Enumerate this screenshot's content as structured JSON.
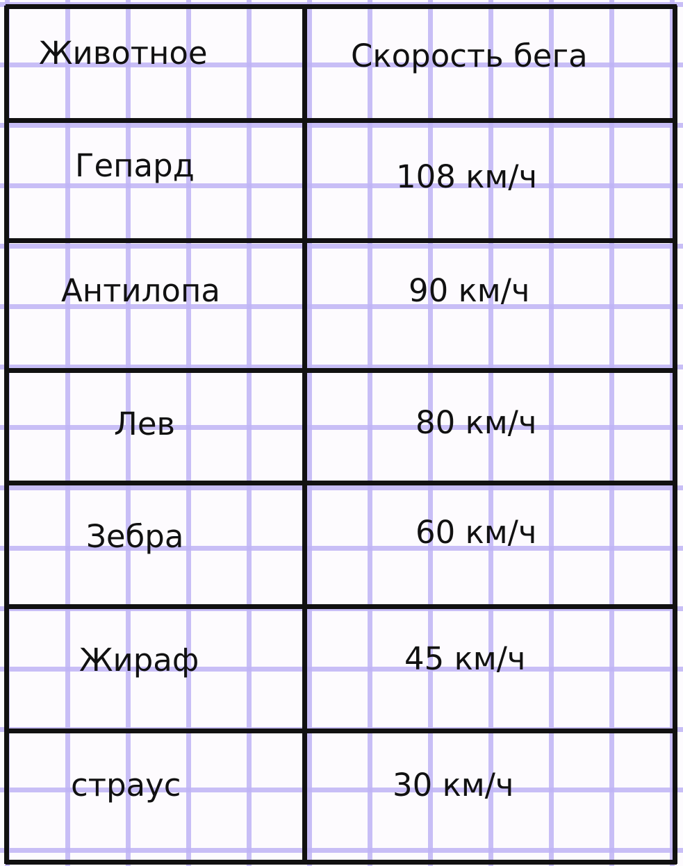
{
  "table": {
    "headers": [
      "Животное",
      "Скорость бега"
    ],
    "rows": [
      {
        "animal": "Гепард",
        "speed": "108 км/ч"
      },
      {
        "animal": "Антилопа",
        "speed": "90 км/ч"
      },
      {
        "animal": "Лев",
        "speed": "80 км/ч"
      },
      {
        "animal": "Зебра",
        "speed": "60 км/ч"
      },
      {
        "animal": "Жираф",
        "speed": "45 км/ч"
      },
      {
        "animal": "страус",
        "speed": "30 км/ч"
      }
    ]
  },
  "colors": {
    "grid": "#bfb4f5",
    "border": "#111111",
    "paper": "#fdfbfe"
  }
}
